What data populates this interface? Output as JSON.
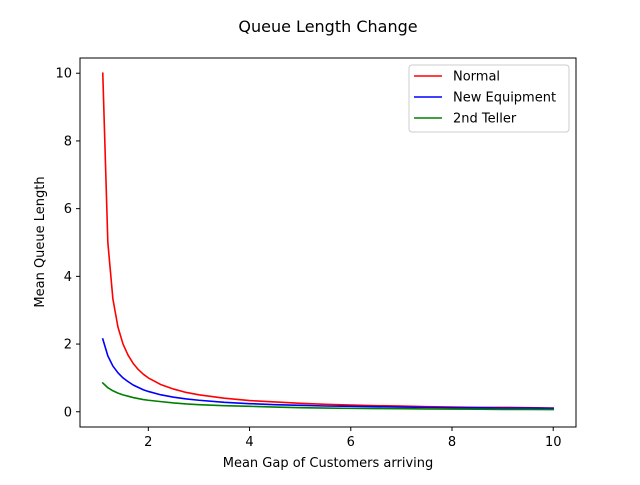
{
  "chart_data": {
    "type": "line",
    "title": "Queue Length Change",
    "xlabel": "Mean Gap of Customers arriving",
    "ylabel": "Mean Queue Length",
    "xlim": [
      0.65,
      10.45
    ],
    "ylim": [
      -0.45,
      10.45
    ],
    "xticks": [
      2,
      4,
      6,
      8,
      10
    ],
    "yticks": [
      0,
      2,
      4,
      6,
      8,
      10
    ],
    "grid": false,
    "legend_position": "top-right",
    "x": [
      1.1,
      1.2,
      1.3,
      1.4,
      1.5,
      1.6,
      1.7,
      1.8,
      1.9,
      2.0,
      2.25,
      2.5,
      2.75,
      3.0,
      3.5,
      4.0,
      4.5,
      5.0,
      5.5,
      6.0,
      6.5,
      7.0,
      7.5,
      8.0,
      8.5,
      9.0,
      9.5,
      10.0
    ],
    "series": [
      {
        "name": "Normal",
        "color": "#ff0000",
        "values": [
          10.0,
          5.0,
          3.33,
          2.5,
          2.0,
          1.67,
          1.43,
          1.25,
          1.11,
          1.0,
          0.8,
          0.67,
          0.57,
          0.5,
          0.4,
          0.33,
          0.29,
          0.25,
          0.22,
          0.2,
          0.18,
          0.17,
          0.15,
          0.14,
          0.13,
          0.13,
          0.12,
          0.11
        ]
      },
      {
        "name": "New Equipment",
        "color": "#0000ff",
        "values": [
          2.15,
          1.65,
          1.35,
          1.15,
          1.0,
          0.89,
          0.79,
          0.72,
          0.65,
          0.6,
          0.5,
          0.43,
          0.38,
          0.34,
          0.28,
          0.24,
          0.21,
          0.19,
          0.17,
          0.16,
          0.15,
          0.14,
          0.13,
          0.12,
          0.12,
          0.11,
          0.11,
          0.1
        ]
      },
      {
        "name": "2nd Teller",
        "color": "#008000",
        "values": [
          0.85,
          0.71,
          0.62,
          0.55,
          0.5,
          0.46,
          0.42,
          0.39,
          0.36,
          0.34,
          0.3,
          0.26,
          0.23,
          0.21,
          0.18,
          0.16,
          0.14,
          0.12,
          0.11,
          0.1,
          0.095,
          0.09,
          0.085,
          0.08,
          0.075,
          0.07,
          0.068,
          0.065
        ]
      }
    ]
  }
}
